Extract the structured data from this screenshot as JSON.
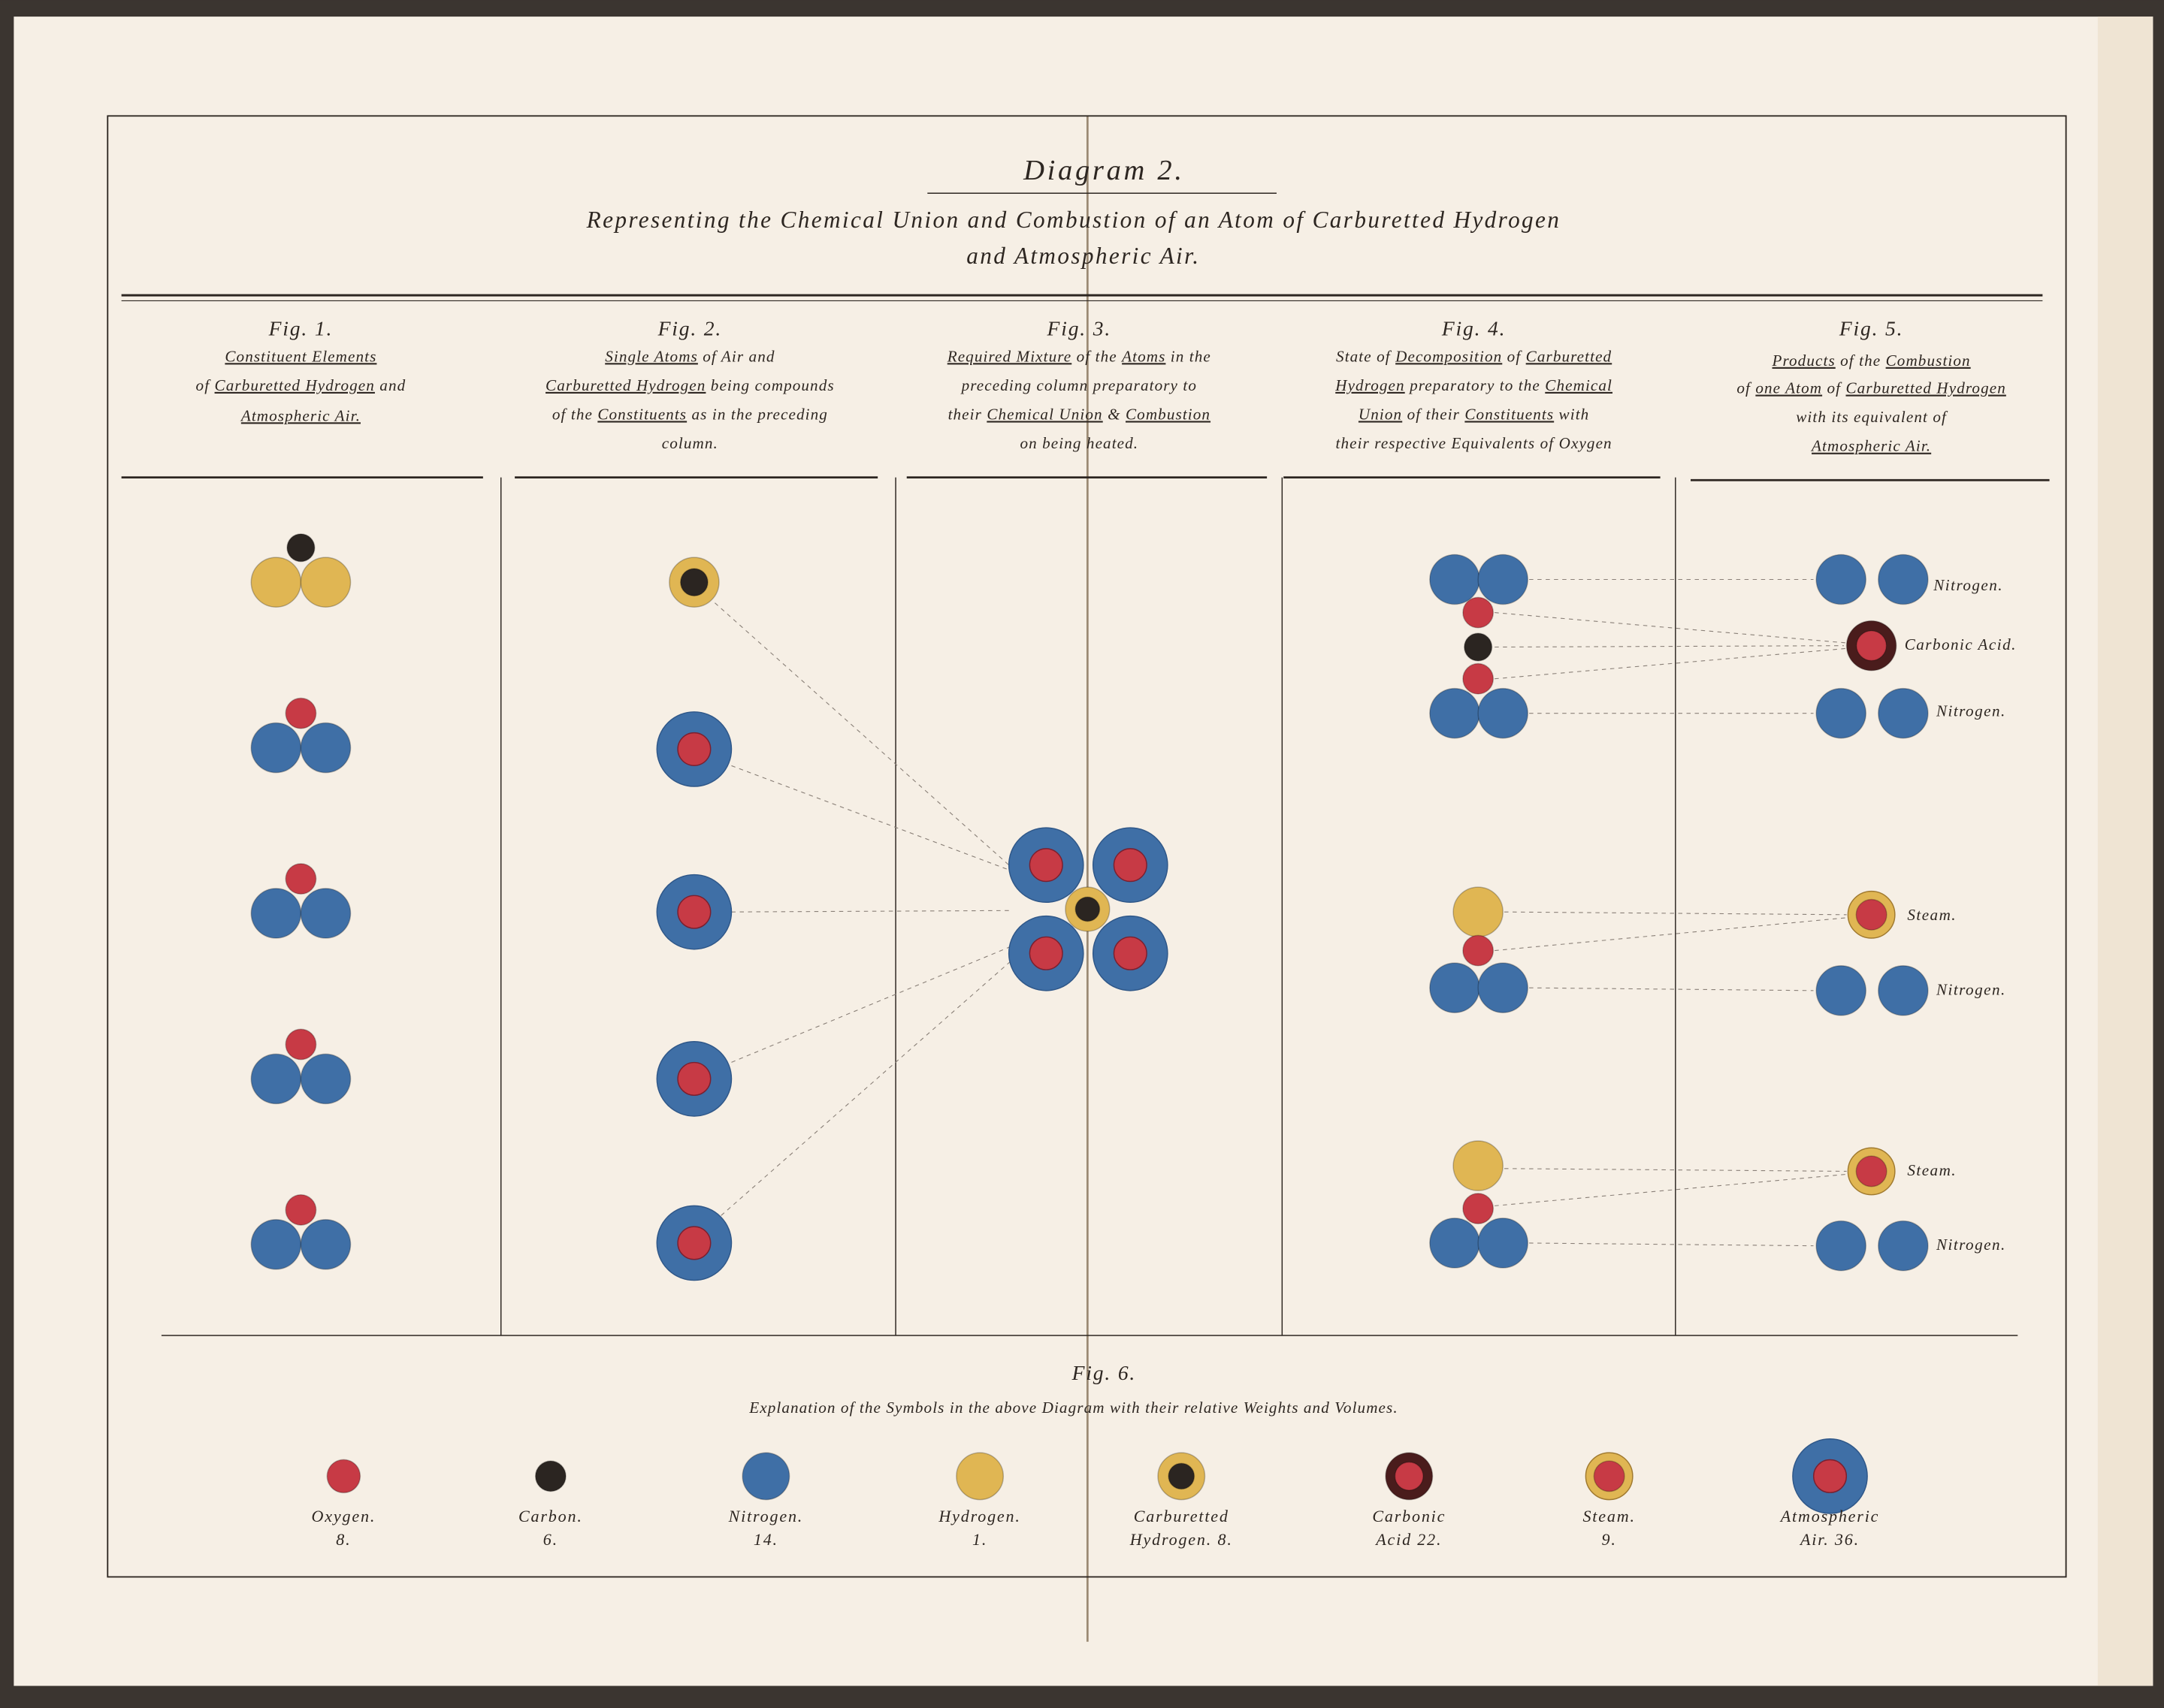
{
  "title": "Diagram 2.",
  "subtitle_line1": "Representing the Chemical Union and Combustion of an Atom of Carburetted Hydrogen",
  "subtitle_line2": "and Atmospheric Air.",
  "colors": {
    "oxygen": "#c73a45",
    "carbon": "#2b2521",
    "nitrogen": "#3f6fa6",
    "hydrogen": "#e0b653",
    "carbonic_acid_ring": "#4a1c1c",
    "paper": "#f7f0e7"
  },
  "figs": [
    {
      "title": "Fig. 1.",
      "lines": [
        [
          {
            "t": "Constituent Elements",
            "u": true
          }
        ],
        [
          {
            "t": "of ",
            "u": false
          },
          {
            "t": "Carburetted Hydrogen",
            "u": true
          },
          {
            "t": " and",
            "u": false
          }
        ],
        [
          {
            "t": "Atmospheric Air.",
            "u": true
          }
        ]
      ]
    },
    {
      "title": "Fig. 2.",
      "lines": [
        [
          {
            "t": "Single Atoms",
            "u": true
          },
          {
            "t": " of Air and",
            "u": false
          }
        ],
        [
          {
            "t": "Carburetted Hydrogen",
            "u": true
          },
          {
            "t": " being compounds",
            "u": false
          }
        ],
        [
          {
            "t": "of the ",
            "u": false
          },
          {
            "t": "Constituents",
            "u": true
          },
          {
            "t": " as in the preceding",
            "u": false
          }
        ],
        [
          {
            "t": "column.",
            "u": false
          }
        ]
      ]
    },
    {
      "title": "Fig. 3.",
      "lines": [
        [
          {
            "t": "Required Mixture",
            "u": true
          },
          {
            "t": " of the ",
            "u": false
          },
          {
            "t": "Atoms",
            "u": true
          },
          {
            "t": " in the",
            "u": false
          }
        ],
        [
          {
            "t": "preceding column preparatory to",
            "u": false
          }
        ],
        [
          {
            "t": "their ",
            "u": false
          },
          {
            "t": "Chemical Union",
            "u": true
          },
          {
            "t": " & ",
            "u": false
          },
          {
            "t": "Combustion",
            "u": true
          }
        ],
        [
          {
            "t": "on being heated.",
            "u": false
          }
        ]
      ]
    },
    {
      "title": "Fig. 4.",
      "lines": [
        [
          {
            "t": "State of ",
            "u": false
          },
          {
            "t": "Decomposition",
            "u": true
          },
          {
            "t": " of ",
            "u": false
          },
          {
            "t": "Carburetted",
            "u": true
          }
        ],
        [
          {
            "t": "Hydrogen",
            "u": true
          },
          {
            "t": " preparatory to the ",
            "u": false
          },
          {
            "t": "Chemical",
            "u": true
          }
        ],
        [
          {
            "t": "Union",
            "u": true
          },
          {
            "t": " of their ",
            "u": false
          },
          {
            "t": "Constituents",
            "u": true
          },
          {
            "t": " with",
            "u": false
          }
        ],
        [
          {
            "t": "their respective Equivalents of Oxygen",
            "u": false
          }
        ]
      ]
    },
    {
      "title": "Fig. 5.",
      "lines": [
        [
          {
            "t": "Products",
            "u": true
          },
          {
            "t": " of the ",
            "u": false
          },
          {
            "t": "Combustion",
            "u": true
          }
        ],
        [
          {
            "t": "of ",
            "u": false
          },
          {
            "t": "one Atom",
            "u": true
          },
          {
            "t": " of ",
            "u": false
          },
          {
            "t": "Carburetted Hydrogen",
            "u": true
          }
        ],
        [
          {
            "t": "with its equivalent of",
            "u": false
          }
        ],
        [
          {
            "t": "Atmospheric Air.",
            "u": true
          }
        ]
      ]
    }
  ],
  "fig5_labels": [
    "Nitrogen.",
    "Carbonic Acid.",
    "Nitrogen.",
    "Steam.",
    "Nitrogen.",
    "Steam.",
    "Nitrogen."
  ],
  "fig6": {
    "title": "Fig. 6.",
    "explanation": "Explanation of the Symbols in the above Diagram with their relative Weights and Volumes.",
    "items": [
      {
        "symbol": "oxygen",
        "line1": "Oxygen.",
        "line2": "8."
      },
      {
        "symbol": "carbon",
        "line1": "Carbon.",
        "line2": "6."
      },
      {
        "symbol": "nitrogen",
        "line1": "Nitrogen.",
        "line2": "14."
      },
      {
        "symbol": "hydrogen",
        "line1": "Hydrogen.",
        "line2": "1."
      },
      {
        "symbol": "carburetted-hydrogen",
        "line1": "Carburetted",
        "line2": "Hydrogen. 8."
      },
      {
        "symbol": "carbonic-acid",
        "line1": "Carbonic",
        "line2": "Acid 22."
      },
      {
        "symbol": "steam",
        "line1": "Steam.",
        "line2": "9."
      },
      {
        "symbol": "atmospheric-air",
        "line1": "Atmospheric",
        "line2": "Air. 36."
      }
    ]
  }
}
